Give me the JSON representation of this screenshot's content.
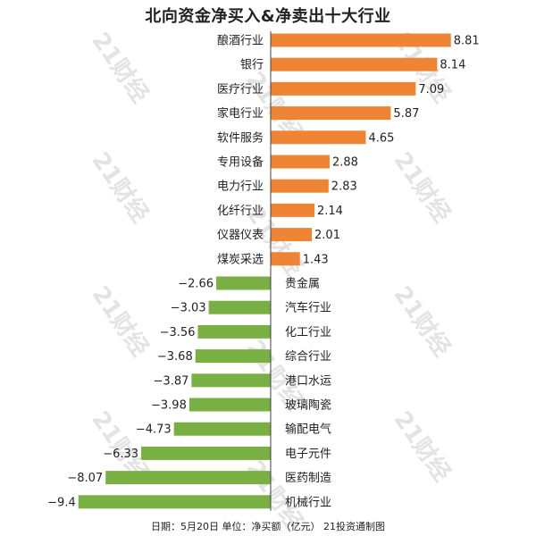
{
  "title": "北向资金净买入&净卖出十大行业",
  "footer": "日期：5月20日 单位：净买额（亿元） 21投资通制图",
  "watermark": "21财经",
  "colors": {
    "positive": "#ef8434",
    "negative": "#79b043",
    "axis": "#444444"
  },
  "chart_data": {
    "type": "bar",
    "orientation": "horizontal",
    "categories": [
      "酿酒行业",
      "银行",
      "医疗行业",
      "家电行业",
      "软件服务",
      "专用设备",
      "电力行业",
      "化纤行业",
      "仪器仪表",
      "煤炭采选",
      "贵金属",
      "汽车行业",
      "化工行业",
      "综合行业",
      "港口水运",
      "玻璃陶瓷",
      "输配电气",
      "电子元件",
      "医药制造",
      "机械行业"
    ],
    "values": [
      8.81,
      8.14,
      7.09,
      5.87,
      4.65,
      2.88,
      2.83,
      2.14,
      2.01,
      1.43,
      -2.66,
      -3.03,
      -3.56,
      -3.68,
      -3.87,
      -3.98,
      -4.73,
      -6.33,
      -8.07,
      -9.4
    ],
    "value_labels": [
      "8.81",
      "8.14",
      "7.09",
      "5.87",
      "4.65",
      "2.88",
      "2.83",
      "2.14",
      "2.01",
      "1.43",
      "−2.66",
      "−3.03",
      "−3.56",
      "−3.68",
      "−3.87",
      "−3.98",
      "−4.73",
      "−6.33",
      "−8.07",
      "−9.4"
    ],
    "xlim": [
      -10,
      9.3
    ],
    "grid": false,
    "legend": "none"
  }
}
